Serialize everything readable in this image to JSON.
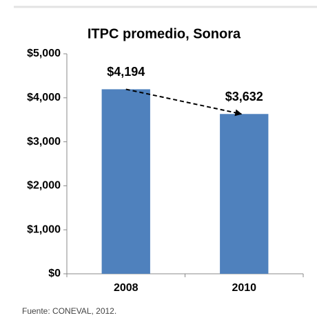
{
  "chart_data": {
    "type": "bar",
    "title": "ITPC promedio, Sonora",
    "categories": [
      "2008",
      "2010"
    ],
    "values": [
      4194,
      3632
    ],
    "value_labels": [
      "$4,194",
      "$3,632"
    ],
    "color": "#4f81bd",
    "ylim": [
      0,
      5000
    ],
    "yticks": [
      {
        "value": 0,
        "label": "$0"
      },
      {
        "value": 1000,
        "label": "$1,000"
      },
      {
        "value": 2000,
        "label": "$2,000"
      },
      {
        "value": 3000,
        "label": "$3,000"
      },
      {
        "value": 4000,
        "label": "$4,000"
      },
      {
        "value": 5000,
        "label": "$5,000"
      }
    ],
    "grid": false,
    "source": "Fuente: CONEVAL, 2012."
  }
}
